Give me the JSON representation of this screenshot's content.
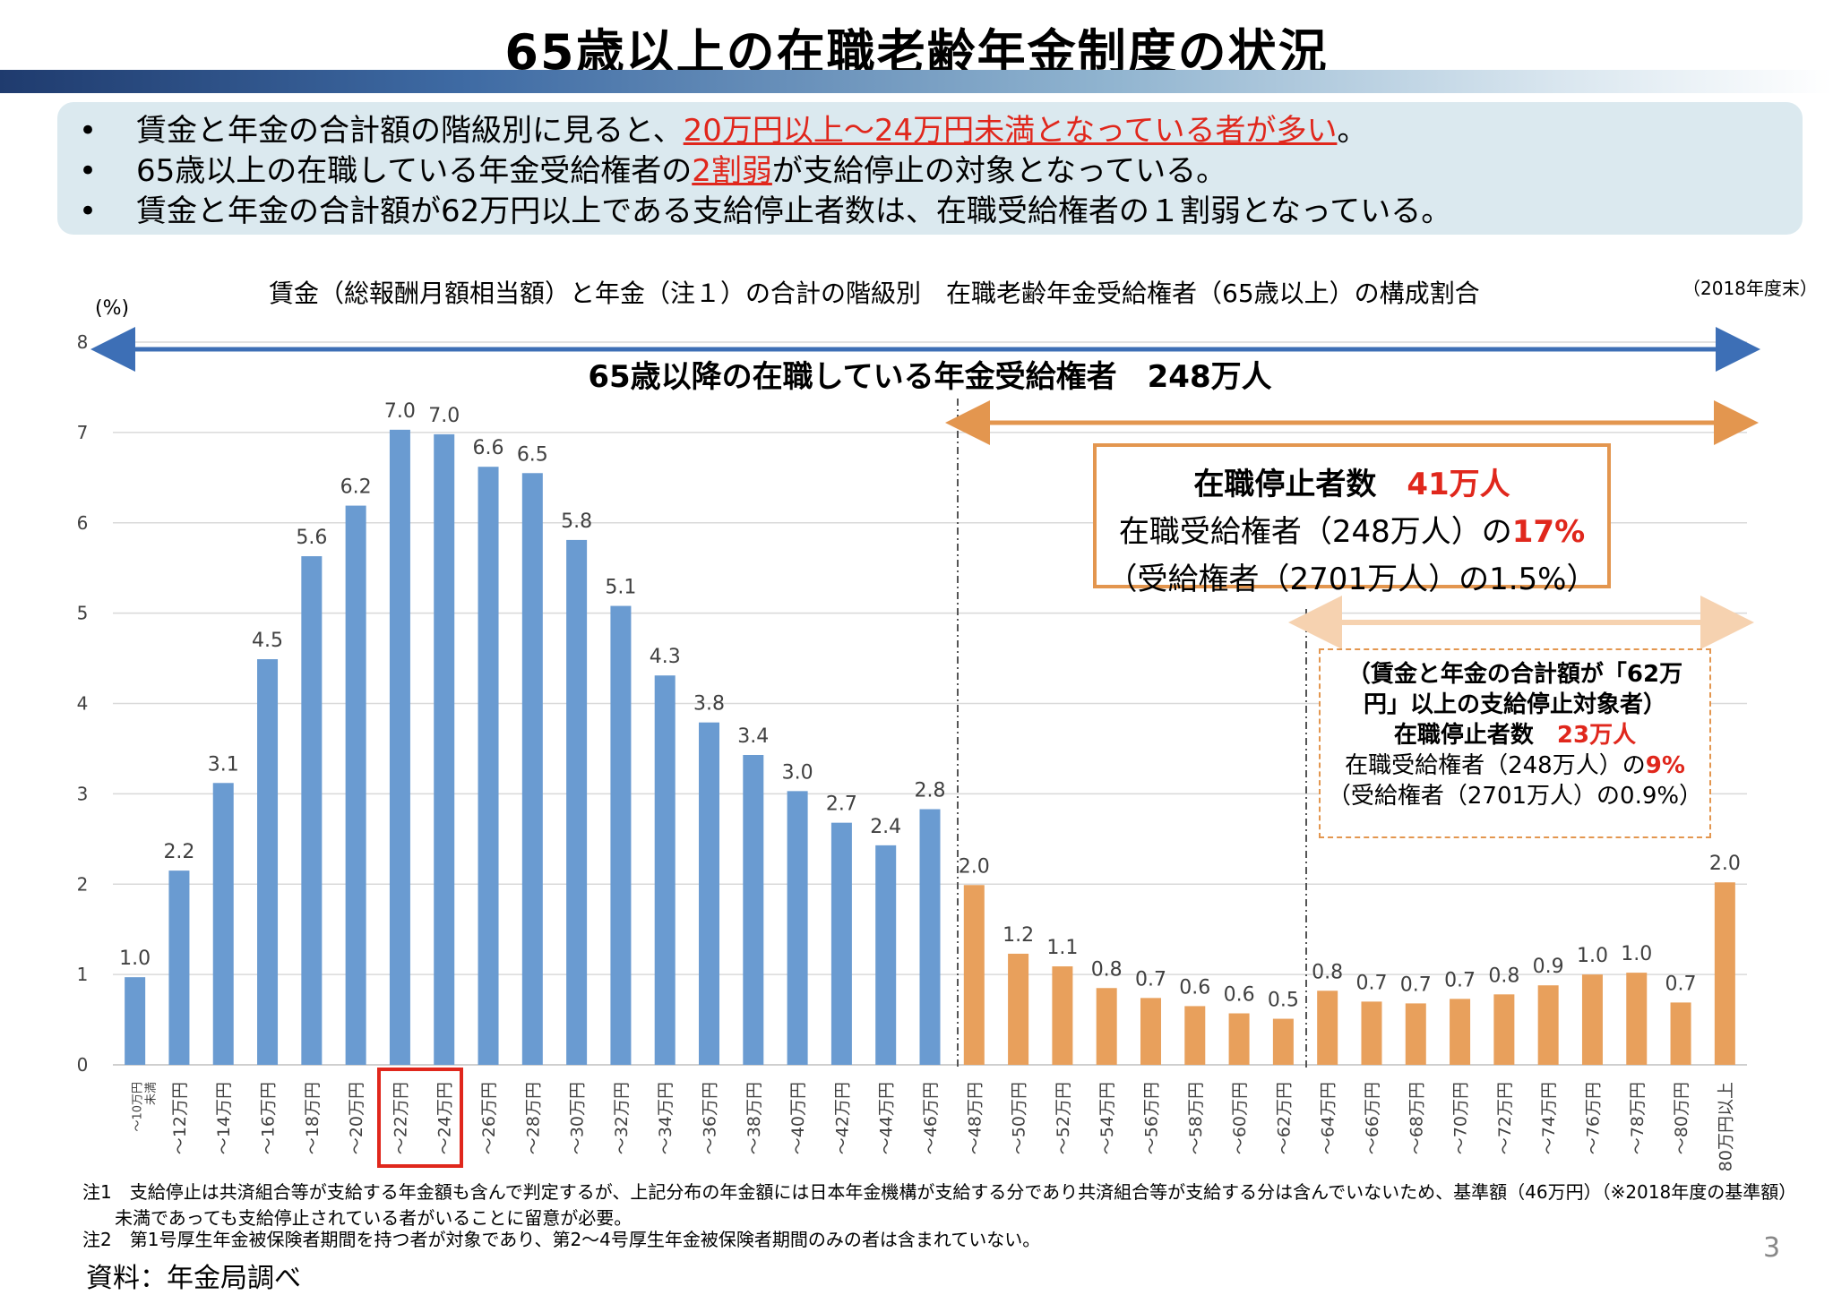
{
  "title": "65歳以上の在職老齢年金制度の状況",
  "summary": {
    "b1_pre": "賃金と年金の合計額の階級別に見ると、",
    "b1_red": "20万円以上～24万円未満となっている者が多い",
    "b1_post": "。",
    "b2_pre": "65歳以上の在職している年金受給権者の",
    "b2_red": "2割弱",
    "b2_post": "が支給停止の対象となっている。",
    "b3": "賃金と年金の合計額が62万円以上である支給停止者数は、在職受給権者の１割弱となっている。"
  },
  "chart_header": "賃金（総報酬月額相当額）と年金（注１）の合計の階級別　在職老齢年金受給権者（65歳以上）の構成割合",
  "as_of": "（2018年度末）",
  "unit": "(%)",
  "total_label": "65歳以降の在職している年金受給権者　248万人",
  "callout_main": {
    "l1_pre": "在職停止者数　",
    "l1_hl": "41万人",
    "l2_pre": "在職受給権者（248万人）の",
    "l2_hl": "17%",
    "l3": "（受給権者（2701万人）の1.5%）"
  },
  "callout_sub": {
    "s1": "（賃金と年金の合計額が「62万",
    "s2": "円」以上の支給停止対象者）",
    "s3_pre": "在職停止者数　",
    "s3_hl": "23万人",
    "s4_pre": "在職受給権者（248万人）の",
    "s4_hl": "9%",
    "s5": "（受給権者（2701万人）の0.9%）"
  },
  "notes": {
    "n1": "注1　支給停止は共済組合等が支給する年金額も含んで判定するが、上記分布の年金額には日本年金機構が支給する分であり共済組合等が支給する分は含んでいないため、基準額（46万円）（※2018年度の基準額）",
    "n1b": "未満であっても支給停止されている者がいることに留意が必要。",
    "n2": "注2　第1号厚生年金被保険者期間を持つ者が対象であり、第2～4号厚生年金被保険者期間のみの者は含まれていない。"
  },
  "source": "資料：年金局調べ",
  "page_number": "3",
  "colors": {
    "blue": "#6a9bd1",
    "orange": "#e8a05c",
    "arrow_blue": "#3d6fb6",
    "arrow_orange": "#e3964f",
    "arrow_light": "#f6d2b0",
    "highlight_red": "#e0271c"
  },
  "chart_data": {
    "type": "bar",
    "ylabel": "(%)",
    "ylim": [
      0,
      8
    ],
    "yticks": [
      0,
      1,
      2,
      3,
      4,
      5,
      6,
      7,
      8
    ],
    "grid": true,
    "categories": [
      "~10万円未満",
      "~12万円",
      "~14万円",
      "~16万円",
      "~18万円",
      "~20万円",
      "~22万円",
      "~24万円",
      "~26万円",
      "~28万円",
      "~30万円",
      "~32万円",
      "~34万円",
      "~36万円",
      "~38万円",
      "~40万円",
      "~42万円",
      "~44万円",
      "~46万円",
      "~48万円",
      "~50万円",
      "~52万円",
      "~54万円",
      "~56万円",
      "~58万円",
      "~60万円",
      "~62万円",
      "~64万円",
      "~66万円",
      "~68万円",
      "~70万円",
      "~72万円",
      "~74万円",
      "~76万円",
      "~78万円",
      "~80万円",
      "80万円以上"
    ],
    "tick_labels": [
      "～10万円",
      "～12万円",
      "～14万円",
      "～16万円",
      "～18万円",
      "～20万円",
      "～22万円",
      "～24万円",
      "～26万円",
      "～28万円",
      "～30万円",
      "～32万円",
      "～34万円",
      "～36万円",
      "～38万円",
      "～40万円",
      "～42万円",
      "～44万円",
      "～46万円",
      "～48万円",
      "～50万円",
      "～52万円",
      "～54万円",
      "～56万円",
      "～58万円",
      "～60万円",
      "～62万円",
      "～64万円",
      "～66万円",
      "～68万円",
      "～70万円",
      "～72万円",
      "～74万円",
      "～76万円",
      "～78万円",
      "～80万円",
      "80万円以上"
    ],
    "first_tick_sub": "未満",
    "values": [
      1.0,
      2.2,
      3.1,
      4.5,
      5.6,
      6.2,
      7.0,
      7.0,
      6.6,
      6.5,
      5.8,
      5.1,
      4.3,
      3.8,
      3.4,
      3.0,
      2.7,
      2.4,
      2.8,
      2.0,
      1.2,
      1.1,
      0.8,
      0.7,
      0.6,
      0.6,
      0.5,
      0.8,
      0.7,
      0.7,
      0.7,
      0.8,
      0.9,
      1.0,
      1.0,
      0.7,
      2.0
    ],
    "bar_values": [
      0.97,
      2.15,
      3.12,
      4.49,
      5.63,
      6.19,
      7.03,
      6.98,
      6.62,
      6.55,
      5.81,
      5.08,
      4.31,
      3.79,
      3.43,
      3.03,
      2.68,
      2.43,
      2.83,
      1.99,
      1.23,
      1.09,
      0.85,
      0.74,
      0.65,
      0.57,
      0.51,
      0.82,
      0.7,
      0.68,
      0.73,
      0.78,
      0.88,
      1.0,
      1.02,
      0.69,
      2.02
    ],
    "blue_count": 19,
    "stop_threshold_index": 19,
    "high_threshold_index": 27,
    "highlighted_categories": [
      "~22万円",
      "~24万円"
    ]
  }
}
